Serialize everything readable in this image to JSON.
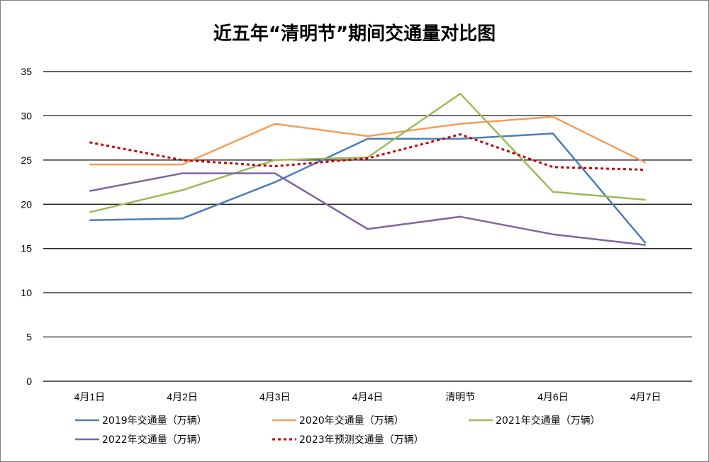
{
  "chart_data": {
    "type": "line",
    "title": "近五年“清明节”期间交通量对比图",
    "xlabel": "",
    "ylabel": "",
    "categories": [
      "4月1日",
      "4月2日",
      "4月3日",
      "4月4日",
      "清明节",
      "4月6日",
      "4月7日"
    ],
    "ylim": [
      0,
      35
    ],
    "yticks": [
      0,
      5,
      10,
      15,
      20,
      25,
      30,
      35
    ],
    "grid": true,
    "legend_position": "bottom",
    "series": [
      {
        "name": "2019年交通量（万辆）",
        "color": "#4a7ebb",
        "dashed": false,
        "values": [
          18.2,
          18.4,
          22.5,
          27.4,
          27.4,
          28.0,
          15.6
        ]
      },
      {
        "name": "2020年交通量（万辆）",
        "color": "#f59d56",
        "dashed": false,
        "values": [
          24.5,
          24.5,
          29.1,
          27.7,
          29.1,
          29.9,
          24.7
        ]
      },
      {
        "name": "2021年交通量（万辆）",
        "color": "#9bbb59",
        "dashed": false,
        "values": [
          19.1,
          21.6,
          25.0,
          25.3,
          32.5,
          21.4,
          20.5
        ]
      },
      {
        "name": "2022年交通量（万辆）",
        "color": "#8064a2",
        "dashed": false,
        "values": [
          21.5,
          23.5,
          23.5,
          17.2,
          18.6,
          16.6,
          15.4
        ]
      },
      {
        "name": "2023年预测交通量（万辆）",
        "color": "#c00000",
        "dashed": true,
        "values": [
          27.0,
          25.0,
          24.3,
          25.2,
          27.9,
          24.2,
          23.9
        ]
      }
    ]
  }
}
